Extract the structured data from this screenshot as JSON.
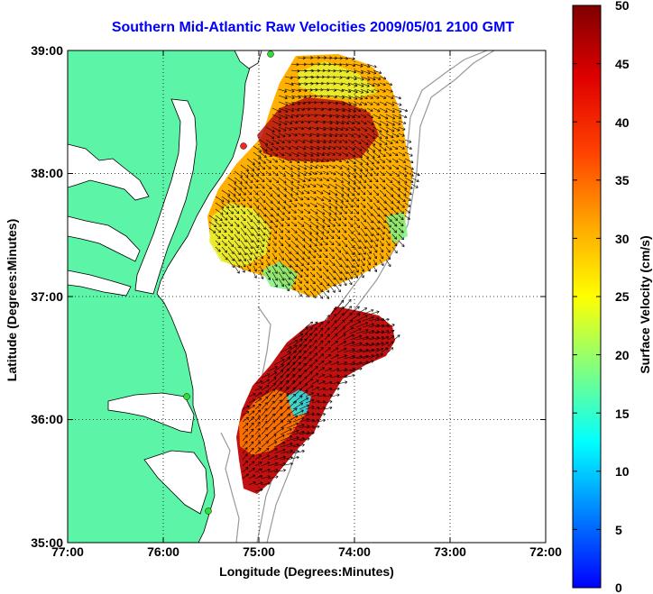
{
  "title": "Southern Mid-Atlantic Raw Velocities 2009/05/01 2100 GMT",
  "xlabel": "Longitude (Degrees:Minutes)",
  "ylabel": "Latitude (Degrees:Minutes)",
  "colorbar": {
    "label": "Surface Velocity (cm/s)",
    "range": [
      0,
      50
    ],
    "ticks": [
      "0",
      "5",
      "10",
      "15",
      "20",
      "25",
      "30",
      "35",
      "40",
      "45",
      "50"
    ],
    "colormap": "jet"
  },
  "map": {
    "lon_ticks": [
      "77:00",
      "76:00",
      "75:00",
      "74:00",
      "73:00",
      "72:00"
    ],
    "lat_ticks": [
      "35:00",
      "36:00",
      "37:00",
      "38:00",
      "39:00"
    ],
    "lon_range": [
      -77,
      -72
    ],
    "lat_range": [
      35,
      39
    ],
    "grid": "dotted",
    "land_color": "#5cf5a8",
    "station_color": "#33dd33"
  }
}
